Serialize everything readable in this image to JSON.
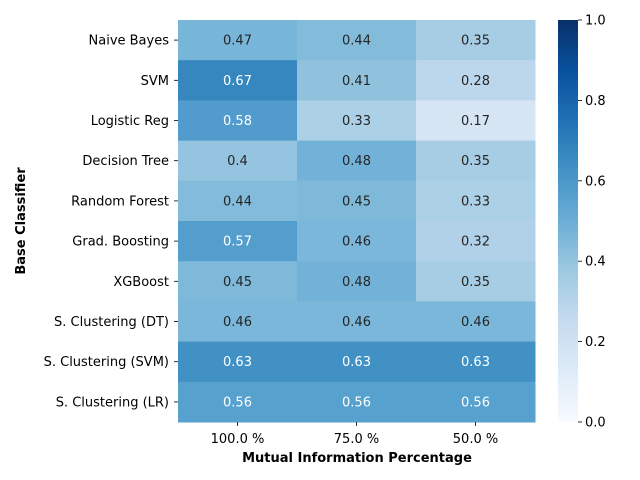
{
  "chart_data": {
    "type": "heatmap",
    "title": "",
    "xlabel": "Mutual Information Percentage",
    "ylabel": "Base Classifier",
    "columns": [
      "100.0 %",
      "75.0 %",
      "50.0 %"
    ],
    "rows": [
      "Naive Bayes",
      "SVM",
      "Logistic Reg",
      "Decision Tree",
      "Random Forest",
      "Grad. Boosting",
      "XGBoost",
      "S. Clustering (DT)",
      "S. Clustering (SVM)",
      "S. Clustering (LR)"
    ],
    "values": [
      [
        0.47,
        0.44,
        0.35
      ],
      [
        0.67,
        0.41,
        0.28
      ],
      [
        0.58,
        0.33,
        0.17
      ],
      [
        0.4,
        0.48,
        0.35
      ],
      [
        0.44,
        0.45,
        0.33
      ],
      [
        0.57,
        0.46,
        0.32
      ],
      [
        0.45,
        0.48,
        0.35
      ],
      [
        0.46,
        0.46,
        0.46
      ],
      [
        0.63,
        0.63,
        0.63
      ],
      [
        0.56,
        0.56,
        0.56
      ]
    ],
    "value_labels": [
      [
        "0.47",
        "0.44",
        "0.35"
      ],
      [
        "0.67",
        "0.41",
        "0.28"
      ],
      [
        "0.58",
        "0.33",
        "0.17"
      ],
      [
        "0.4",
        "0.48",
        "0.35"
      ],
      [
        "0.44",
        "0.45",
        "0.33"
      ],
      [
        "0.57",
        "0.46",
        "0.32"
      ],
      [
        "0.45",
        "0.48",
        "0.35"
      ],
      [
        "0.46",
        "0.46",
        "0.46"
      ],
      [
        "0.63",
        "0.63",
        "0.63"
      ],
      [
        "0.56",
        "0.56",
        "0.56"
      ]
    ],
    "colorscale": "Blues",
    "vmin": 0,
    "vmax": 1,
    "colorbar_ticks": [
      "0.0",
      "0.2",
      "0.4",
      "0.6",
      "0.8",
      "1.0"
    ]
  }
}
